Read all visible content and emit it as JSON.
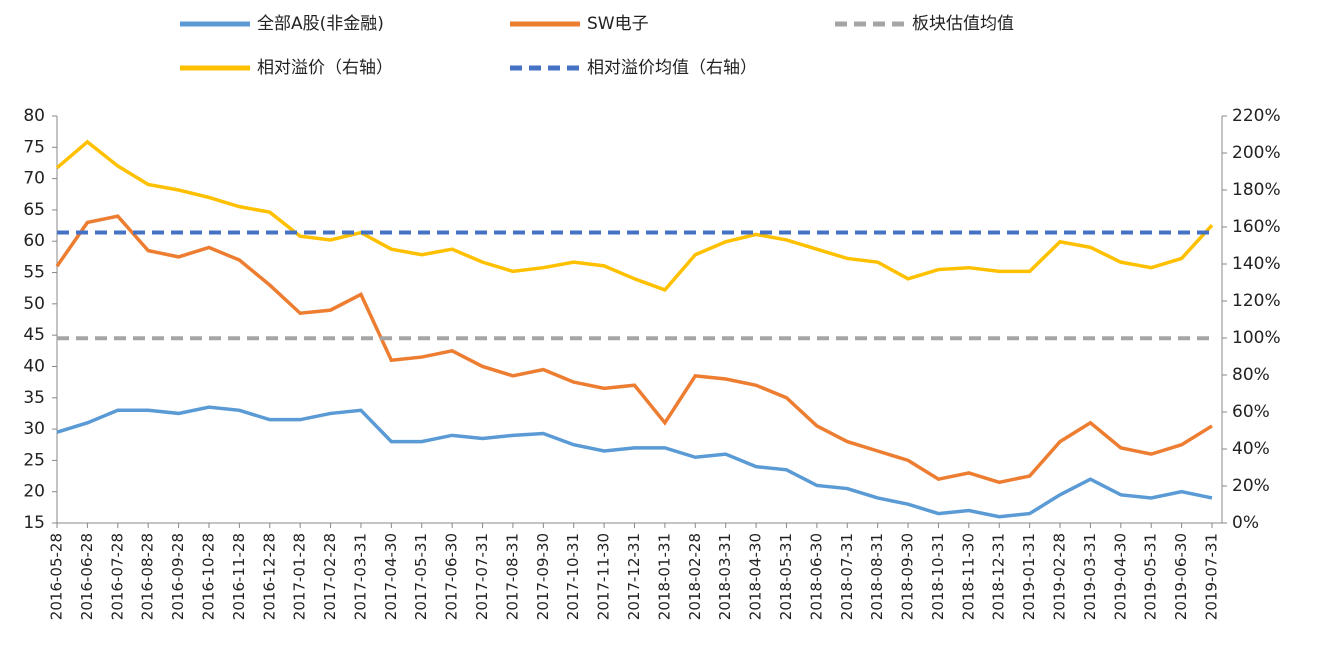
{
  "chart_data": {
    "type": "line",
    "categories": [
      "2016-05-28",
      "2016-06-28",
      "2016-07-28",
      "2016-08-28",
      "2016-09-28",
      "2016-10-28",
      "2016-11-28",
      "2016-12-28",
      "2017-01-28",
      "2017-02-28",
      "2017-03-31",
      "2017-04-30",
      "2017-05-31",
      "2017-06-30",
      "2017-07-31",
      "2017-08-31",
      "2017-09-30",
      "2017-10-31",
      "2017-11-30",
      "2017-12-31",
      "2018-01-31",
      "2018-02-28",
      "2018-03-31",
      "2018-04-30",
      "2018-05-31",
      "2018-06-30",
      "2018-07-31",
      "2018-08-31",
      "2018-09-30",
      "2018-10-31",
      "2018-11-30",
      "2018-12-31",
      "2019-01-31",
      "2019-02-28",
      "2019-03-31",
      "2019-04-30",
      "2019-05-31",
      "2019-06-30",
      "2019-07-31"
    ],
    "series": [
      {
        "name": "全部A股(非金融)",
        "color": "#5B9BD5",
        "dashed": false,
        "values": [
          29.5,
          31,
          33,
          33,
          32.5,
          33.5,
          33,
          31.5,
          31.5,
          32.5,
          33,
          28,
          28,
          29,
          28.5,
          29,
          29.3,
          27.5,
          26.5,
          27,
          27,
          25.5,
          26,
          24,
          23.5,
          21,
          20.5,
          19,
          18,
          16.5,
          17,
          16,
          16.5,
          19.5,
          22,
          19.5,
          19,
          20,
          19
        ]
      },
      {
        "name": "SW电子",
        "color": "#ED7D31",
        "dashed": false,
        "values": [
          56,
          63,
          64,
          58.5,
          57.5,
          59,
          57,
          53,
          48.5,
          49,
          51.5,
          41,
          41.5,
          42.5,
          40,
          38.5,
          39.5,
          37.5,
          36.5,
          37,
          31,
          38.5,
          38,
          37,
          35,
          30.5,
          28,
          26.5,
          25,
          22,
          23,
          21.5,
          22.5,
          28,
          31,
          27,
          26,
          27.5,
          30.5
        ]
      },
      {
        "name": "板块估值均值",
        "color": "#A5A5A5",
        "dashed": true,
        "values": [
          44.5,
          44.5,
          44.5,
          44.5,
          44.5,
          44.5,
          44.5,
          44.5,
          44.5,
          44.5,
          44.5,
          44.5,
          44.5,
          44.5,
          44.5,
          44.5,
          44.5,
          44.5,
          44.5,
          44.5,
          44.5,
          44.5,
          44.5,
          44.5,
          44.5,
          44.5,
          44.5,
          44.5,
          44.5,
          44.5,
          44.5,
          44.5,
          44.5,
          44.5,
          44.5,
          44.5,
          44.5,
          44.5,
          44.5
        ]
      },
      {
        "name": "相对溢价（右轴）",
        "color": "#FFC000",
        "dashed": false,
        "axis": "y2",
        "values": [
          192,
          206,
          193,
          183,
          180,
          176,
          171,
          168,
          155,
          153,
          157,
          148,
          145,
          148,
          141,
          136,
          138,
          141,
          139,
          132,
          126,
          145,
          152,
          156,
          153,
          148,
          143,
          141,
          132,
          137,
          138,
          136,
          136,
          152,
          149,
          141,
          138,
          143,
          161
        ]
      },
      {
        "name": "相对溢价均值（右轴）",
        "color": "#4472C4",
        "dashed": true,
        "axis": "y2",
        "values": [
          157,
          157,
          157,
          157,
          157,
          157,
          157,
          157,
          157,
          157,
          157,
          157,
          157,
          157,
          157,
          157,
          157,
          157,
          157,
          157,
          157,
          157,
          157,
          157,
          157,
          157,
          157,
          157,
          157,
          157,
          157,
          157,
          157,
          157,
          157,
          157,
          157,
          157,
          157
        ]
      }
    ],
    "ylim": [
      15,
      80
    ],
    "yticks": [
      15,
      20,
      25,
      30,
      35,
      40,
      45,
      50,
      55,
      60,
      65,
      70,
      75,
      80
    ],
    "y2lim": [
      0,
      220
    ],
    "y2ticks": [
      {
        "value": 0,
        "label": "0%"
      },
      {
        "value": 20,
        "label": "20%"
      },
      {
        "value": 40,
        "label": "40%"
      },
      {
        "value": 60,
        "label": "60%"
      },
      {
        "value": 80,
        "label": "80%"
      },
      {
        "value": 100,
        "label": "100%"
      },
      {
        "value": 120,
        "label": "120%"
      },
      {
        "value": 140,
        "label": "140%"
      },
      {
        "value": 160,
        "label": "160%"
      },
      {
        "value": 180,
        "label": "180%"
      },
      {
        "value": 200,
        "label": "200%"
      },
      {
        "value": 220,
        "label": "220%"
      }
    ]
  }
}
